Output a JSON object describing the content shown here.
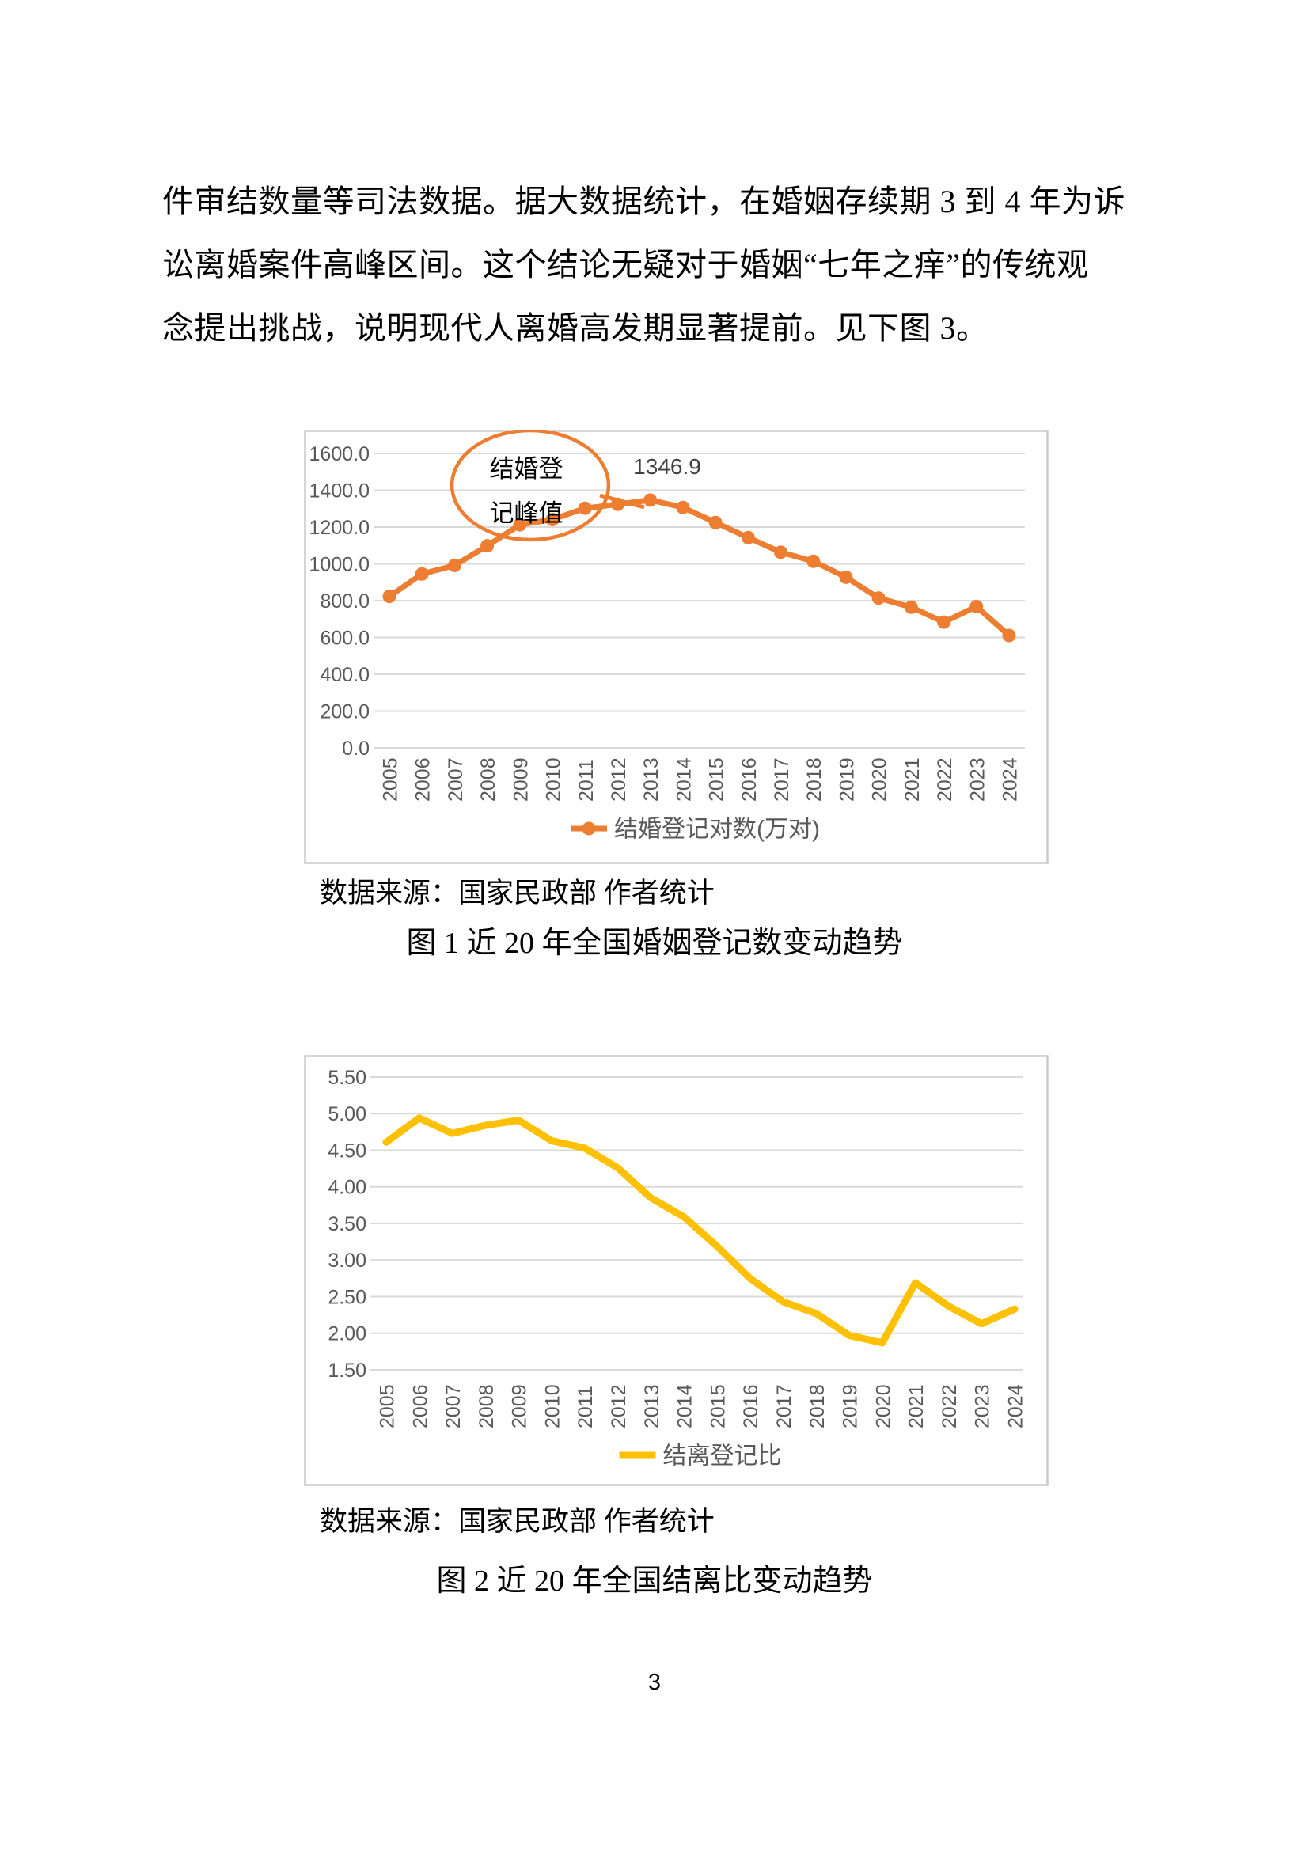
{
  "page_number": "3",
  "paragraph": {
    "lines": [
      "件审结数量等司法数据。据大数据统计，在婚姻存续期 3 到 4 年为诉",
      "讼离婚案件高峰区间。这个结论无疑对于婚姻“七年之痒”的传统观",
      "念提出挑战，说明现代人离婚高发期显著提前。见下图 3。"
    ]
  },
  "figure1": {
    "source_note": "数据来源：国家民政部  作者统计",
    "caption": "图 1  近 20 年全国婚姻登记数变动趋势"
  },
  "figure2": {
    "source_note": "数据来源：国家民政部  作者统计",
    "caption": "图 2  近 20 年全国结离比变动趋势"
  },
  "chart_data": [
    {
      "type": "line",
      "title": "",
      "xlabel": "",
      "ylabel": "",
      "categories": [
        "2005",
        "2006",
        "2007",
        "2008",
        "2009",
        "2010",
        "2011",
        "2012",
        "2013",
        "2014",
        "2015",
        "2016",
        "2017",
        "2018",
        "2019",
        "2020",
        "2021",
        "2022",
        "2023",
        "2024"
      ],
      "series": [
        {
          "name": "结婚登记对数(万对)",
          "values": [
            823.1,
            945.0,
            991.4,
            1098.3,
            1212.2,
            1241.0,
            1302.4,
            1323.6,
            1346.9,
            1306.7,
            1224.7,
            1142.8,
            1063.1,
            1013.9,
            927.3,
            814.3,
            764.3,
            683.5,
            768.0,
            610.6
          ]
        }
      ],
      "ylim": [
        0,
        1600
      ],
      "ystep": 200,
      "y_decimals": 1,
      "grid": true,
      "markers": true,
      "line_color": "#ED7D31",
      "grid_color": "#D9D9D9",
      "tick_color": "#595959",
      "legend_label": "结婚登记对数(万对)",
      "legend_position": "bottom",
      "annotation": {
        "text_lines": [
          "结婚登",
          "记峰值"
        ],
        "peak_label": "1346.9",
        "peak_year": "2013"
      }
    },
    {
      "type": "line",
      "title": "",
      "xlabel": "",
      "ylabel": "",
      "categories": [
        "2005",
        "2006",
        "2007",
        "2008",
        "2009",
        "2010",
        "2011",
        "2012",
        "2013",
        "2014",
        "2015",
        "2016",
        "2017",
        "2018",
        "2019",
        "2020",
        "2021",
        "2022",
        "2023",
        "2024"
      ],
      "series": [
        {
          "name": "结离登记比",
          "values": [
            4.61,
            4.94,
            4.73,
            4.84,
            4.91,
            4.63,
            4.53,
            4.26,
            3.85,
            3.59,
            3.19,
            2.75,
            2.43,
            2.27,
            1.97,
            1.87,
            2.69,
            2.37,
            2.13,
            2.33
          ]
        }
      ],
      "ylim": [
        1.5,
        5.5
      ],
      "ystep": 0.5,
      "y_decimals": 2,
      "grid": true,
      "markers": false,
      "line_color": "#FFC000",
      "grid_color": "#D9D9D9",
      "tick_color": "#595959",
      "legend_label": "结离登记比",
      "legend_position": "bottom"
    }
  ]
}
